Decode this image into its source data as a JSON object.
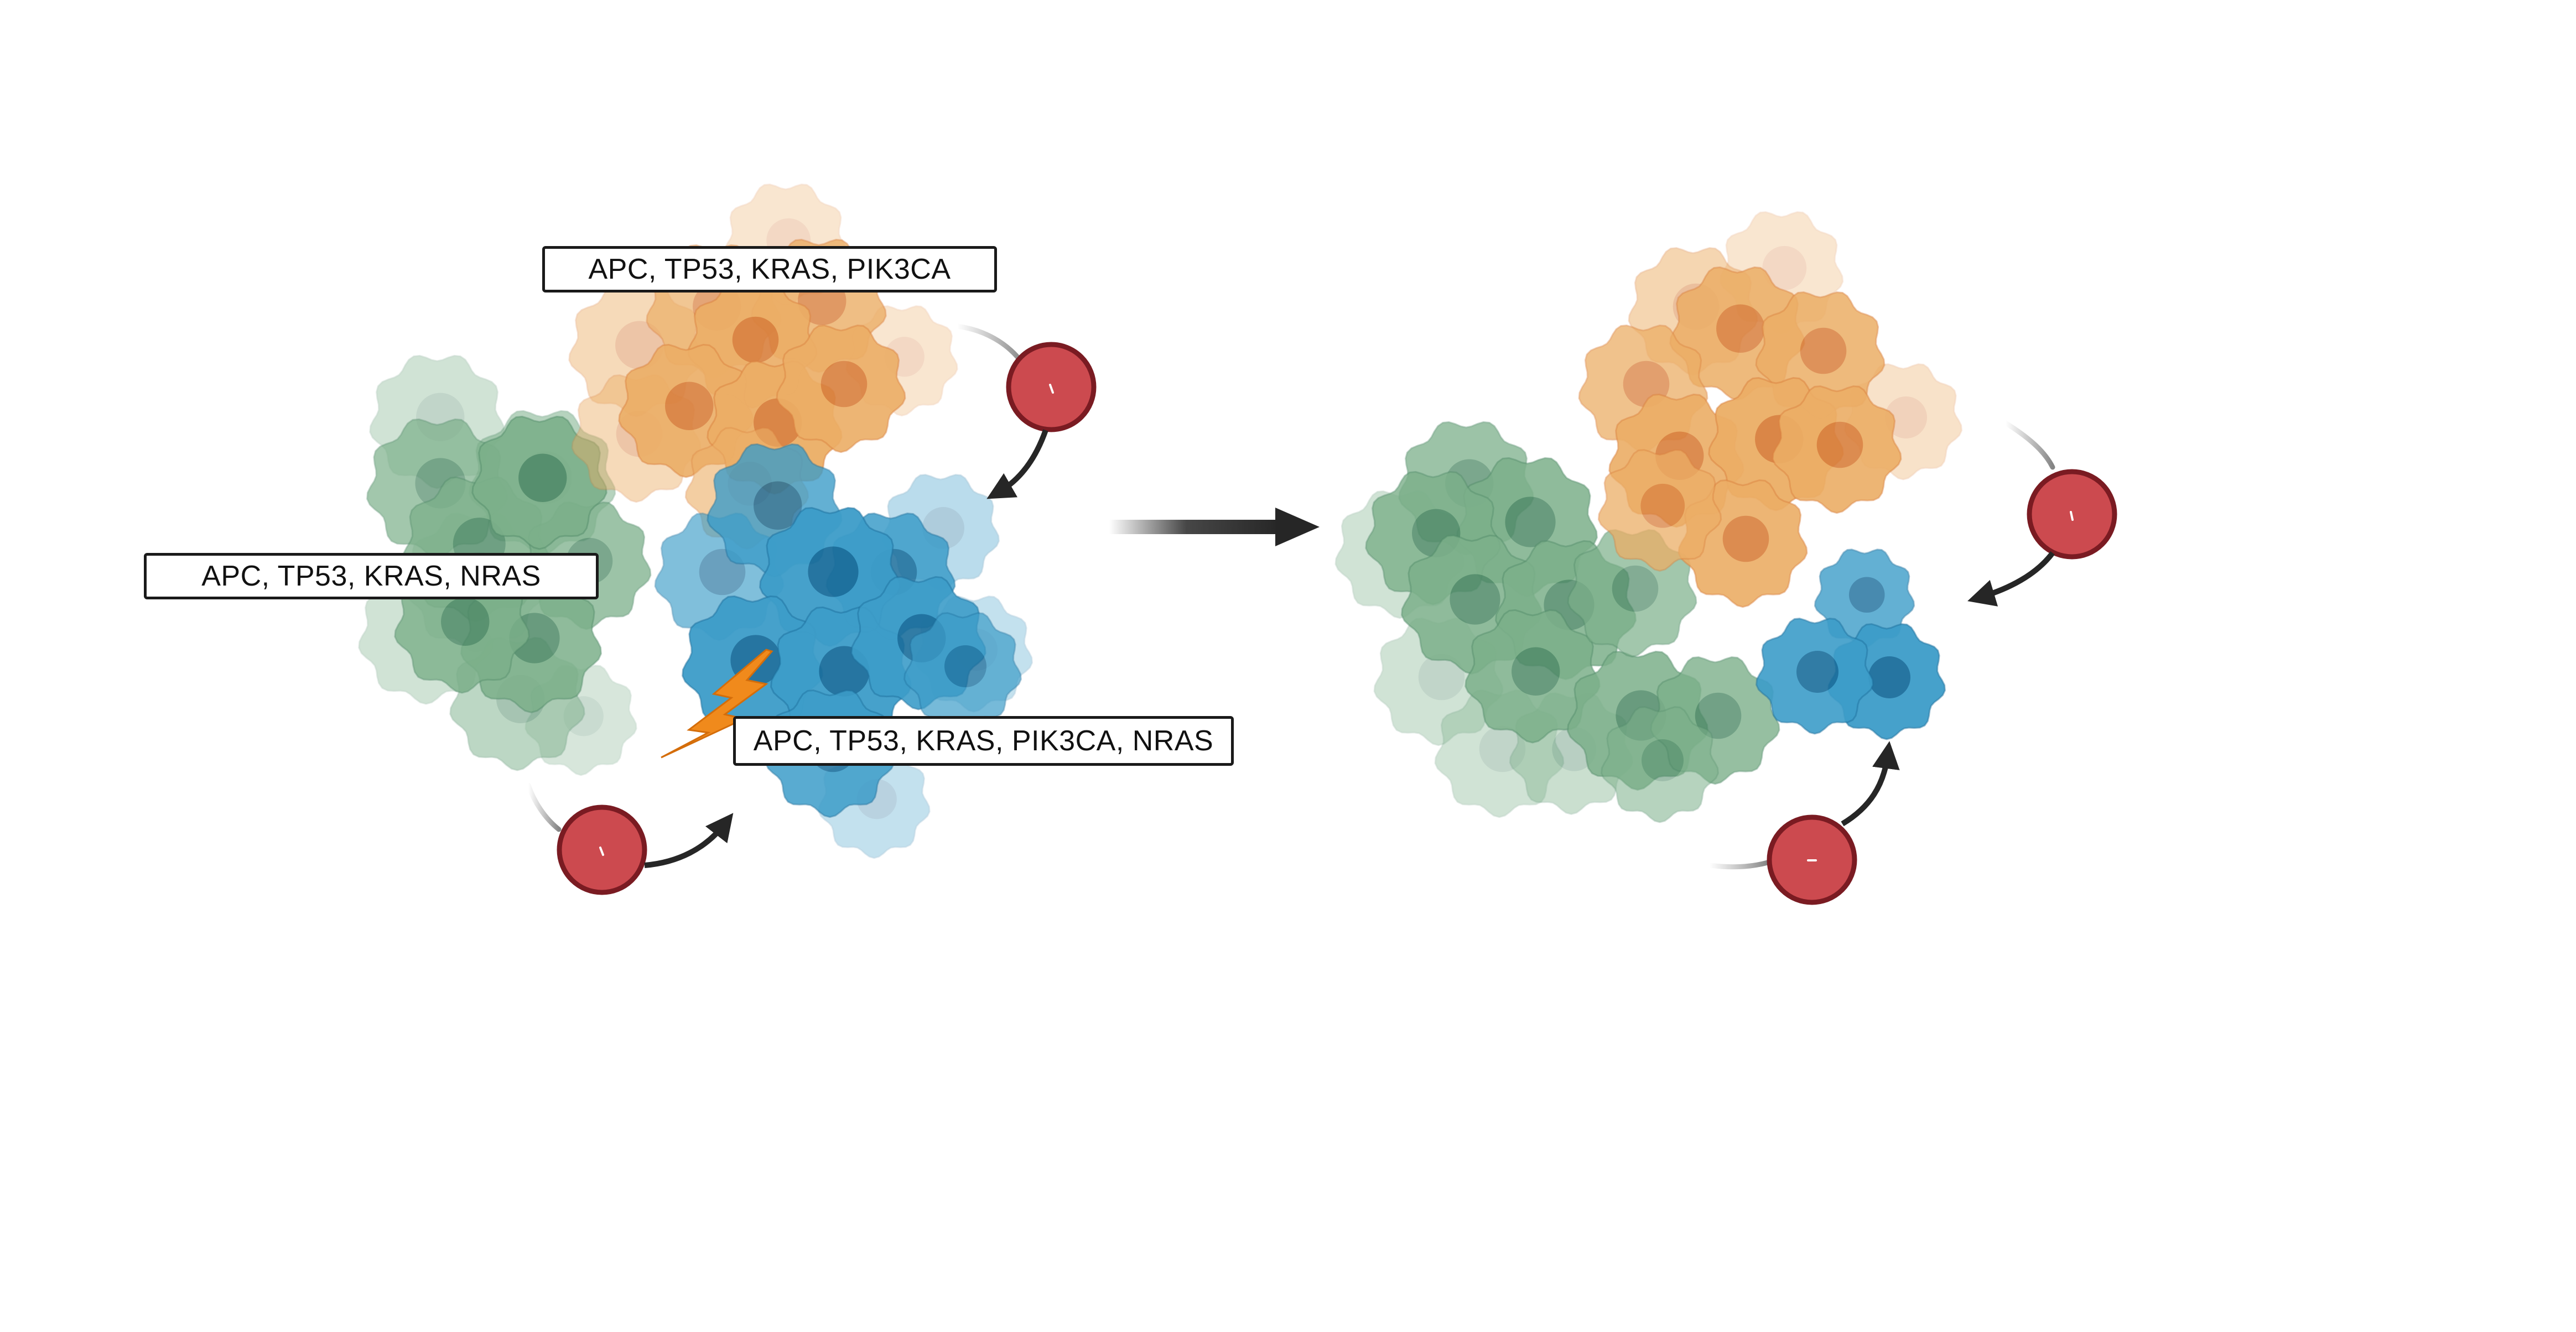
{
  "labels": {
    "top_clone": "APC, TP53, KRAS, PIK3CA",
    "left_clone": "APC, TP53, KRAS, NRAS",
    "mutated_clone": "APC, TP53, KRAS, PIK3CA, NRAS"
  },
  "colors": {
    "orange_cell": "#ecae66",
    "orange_nucleus": "#d9803e",
    "green_cell": "#7cb08a",
    "green_nucleus": "#4f8a68",
    "blue_cell": "#3d9dc9",
    "blue_nucleus": "#1b6e9c",
    "immune_cell": "#cc4a4f",
    "immune_outline": "#7a1b22",
    "arrow": "#262626",
    "lightning": "#f08a1c"
  },
  "icons": {
    "immune": "immune-cell-icon",
    "lightning": "lightning-bolt-icon",
    "transition": "transition-arrow-icon"
  }
}
